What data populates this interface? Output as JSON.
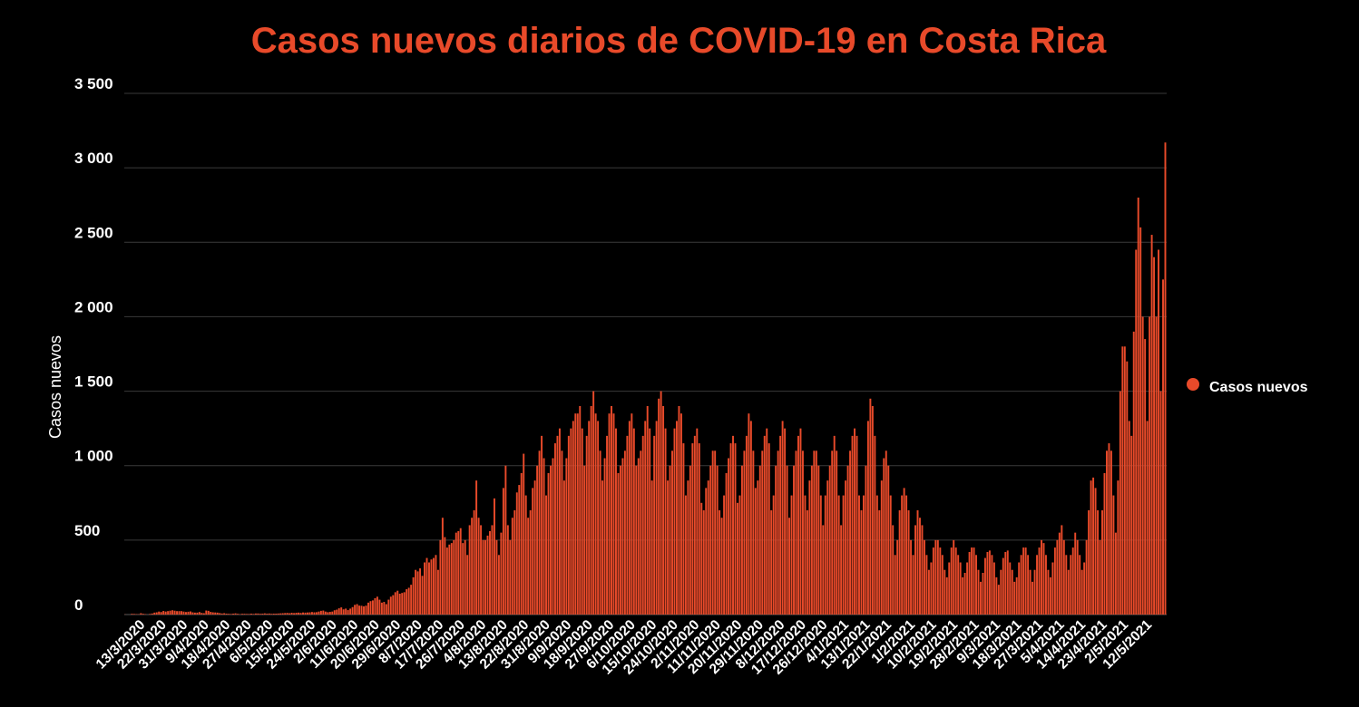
{
  "chart_data": {
    "type": "bar",
    "title": "Casos nuevos diarios de COVID-19 en Costa Rica",
    "ylabel": "Casos nuevos",
    "xlabel": "",
    "ylim": [
      0,
      3500
    ],
    "yticks": [
      0,
      500,
      1000,
      1500,
      2000,
      2500,
      3000,
      3500
    ],
    "ytick_labels": [
      "0",
      "500",
      "1 000",
      "1 500",
      "2 000",
      "2 500",
      "3 000",
      "3 500"
    ],
    "x_start": "2020-03-06",
    "x_end": "2021-05-19",
    "xtick_labels": [
      "13/3/2020",
      "22/3/2020",
      "31/3/2020",
      "9/4/2020",
      "18/4/2020",
      "27/4/2020",
      "6/5/2020",
      "15/5/2020",
      "24/5/2020",
      "2/6/2020",
      "11/6/2020",
      "20/6/2020",
      "29/6/2020",
      "8/7/2020",
      "17/7/2020",
      "26/7/2020",
      "4/8/2020",
      "13/8/2020",
      "22/8/2020",
      "31/8/2020",
      "9/9/2020",
      "18/9/2020",
      "27/9/2020",
      "6/10/2020",
      "15/10/2020",
      "24/10/2020",
      "2/11/2020",
      "11/11/2020",
      "20/11/2020",
      "29/11/2020",
      "8/12/2020",
      "17/12/2020",
      "26/12/2020",
      "4/1/2021",
      "13/1/2021",
      "22/1/2021",
      "1/2/2021",
      "10/2/2021",
      "19/2/2021",
      "28/2/2021",
      "9/3/2021",
      "18/3/2021",
      "27/3/2021",
      "5/4/2021",
      "14/4/2021",
      "23/4/2021",
      "2/5/2021",
      "12/5/2021"
    ],
    "grid": true,
    "legend": "right",
    "series": [
      {
        "name": "Casos nuevos",
        "color": "#e84a2a",
        "values": [
          1,
          0,
          0,
          5,
          4,
          3,
          2,
          9,
          5,
          3,
          0,
          4,
          7,
          13,
          15,
          20,
          17,
          24,
          20,
          23,
          26,
          29,
          26,
          23,
          23,
          23,
          20,
          17,
          19,
          21,
          15,
          13,
          13,
          17,
          11,
          9,
          27,
          25,
          18,
          15,
          14,
          13,
          10,
          7,
          9,
          6,
          5,
          4,
          6,
          8,
          5,
          3,
          5,
          5,
          4,
          4,
          6,
          4,
          7,
          7,
          5,
          6,
          8,
          6,
          7,
          5,
          6,
          6,
          7,
          8,
          9,
          10,
          11,
          9,
          12,
          10,
          12,
          13,
          11,
          14,
          13,
          14,
          15,
          17,
          15,
          16,
          20,
          25,
          27,
          20,
          16,
          18,
          20,
          29,
          33,
          42,
          48,
          35,
          40,
          30,
          40,
          50,
          65,
          70,
          60,
          59,
          55,
          60,
          80,
          90,
          95,
          110,
          120,
          100,
          80,
          85,
          70,
          100,
          120,
          130,
          150,
          160,
          140,
          145,
          150,
          170,
          180,
          200,
          250,
          300,
          290,
          310,
          260,
          350,
          380,
          350,
          370,
          380,
          400,
          300,
          500,
          650,
          520,
          450,
          470,
          480,
          500,
          550,
          560,
          580,
          480,
          500,
          400,
          600,
          650,
          700,
          900,
          650,
          600,
          500,
          500,
          530,
          560,
          600,
          780,
          500,
          400,
          550,
          850,
          1000,
          600,
          500,
          650,
          700,
          820,
          870,
          950,
          1080,
          800,
          650,
          700,
          850,
          900,
          1000,
          1100,
          1200,
          1050,
          800,
          950,
          1000,
          1050,
          1150,
          1200,
          1250,
          1100,
          900,
          1050,
          1200,
          1250,
          1300,
          1350,
          1350,
          1400,
          1250,
          1000,
          1200,
          1300,
          1400,
          1500,
          1350,
          1300,
          1100,
          900,
          1050,
          1200,
          1350,
          1400,
          1350,
          1250,
          950,
          1000,
          1050,
          1100,
          1200,
          1300,
          1350,
          1250,
          1000,
          1050,
          1100,
          1200,
          1300,
          1400,
          1250,
          900,
          1200,
          1300,
          1450,
          1500,
          1400,
          1250,
          900,
          1000,
          1100,
          1250,
          1300,
          1400,
          1350,
          1150,
          800,
          900,
          1000,
          1150,
          1200,
          1250,
          1150,
          750,
          700,
          850,
          900,
          1000,
          1100,
          1100,
          1000,
          700,
          650,
          800,
          950,
          1050,
          1150,
          1200,
          1150,
          750,
          800,
          1000,
          1100,
          1200,
          1350,
          1300,
          1100,
          850,
          900,
          1000,
          1100,
          1200,
          1250,
          1150,
          700,
          800,
          1000,
          1100,
          1200,
          1300,
          1250,
          1000,
          650,
          800,
          1000,
          1100,
          1200,
          1250,
          1100,
          800,
          700,
          900,
          1000,
          1100,
          1100,
          1000,
          800,
          600,
          800,
          900,
          1000,
          1100,
          1200,
          1100,
          800,
          600,
          800,
          900,
          1000,
          1100,
          1200,
          1250,
          1200,
          800,
          700,
          800,
          1000,
          1300,
          1450,
          1400,
          1200,
          800,
          700,
          900,
          1050,
          1100,
          1000,
          800,
          600,
          400,
          500,
          700,
          800,
          850,
          800,
          700,
          500,
          400,
          600,
          700,
          650,
          600,
          500,
          400,
          300,
          350,
          450,
          500,
          500,
          450,
          400,
          300,
          250,
          350,
          450,
          500,
          450,
          400,
          350,
          250,
          280,
          350,
          420,
          450,
          450,
          400,
          300,
          220,
          280,
          380,
          420,
          430,
          400,
          350,
          250,
          200,
          300,
          380,
          420,
          430,
          350,
          300,
          220,
          250,
          350,
          400,
          450,
          450,
          400,
          300,
          220,
          300,
          400,
          450,
          500,
          480,
          400,
          300,
          250,
          350,
          450,
          500,
          550,
          600,
          500,
          400,
          300,
          400,
          450,
          550,
          500,
          400,
          300,
          350,
          500,
          700,
          900,
          920,
          850,
          700,
          500,
          700,
          950,
          1100,
          1150,
          1100,
          800,
          550,
          900,
          1500,
          1800,
          1800,
          1700,
          1300,
          1200,
          1900,
          2450,
          2800,
          2600,
          2000,
          1850,
          1300,
          2000,
          2550,
          2400,
          2000,
          2450,
          1500,
          2250,
          3170
        ]
      }
    ]
  }
}
